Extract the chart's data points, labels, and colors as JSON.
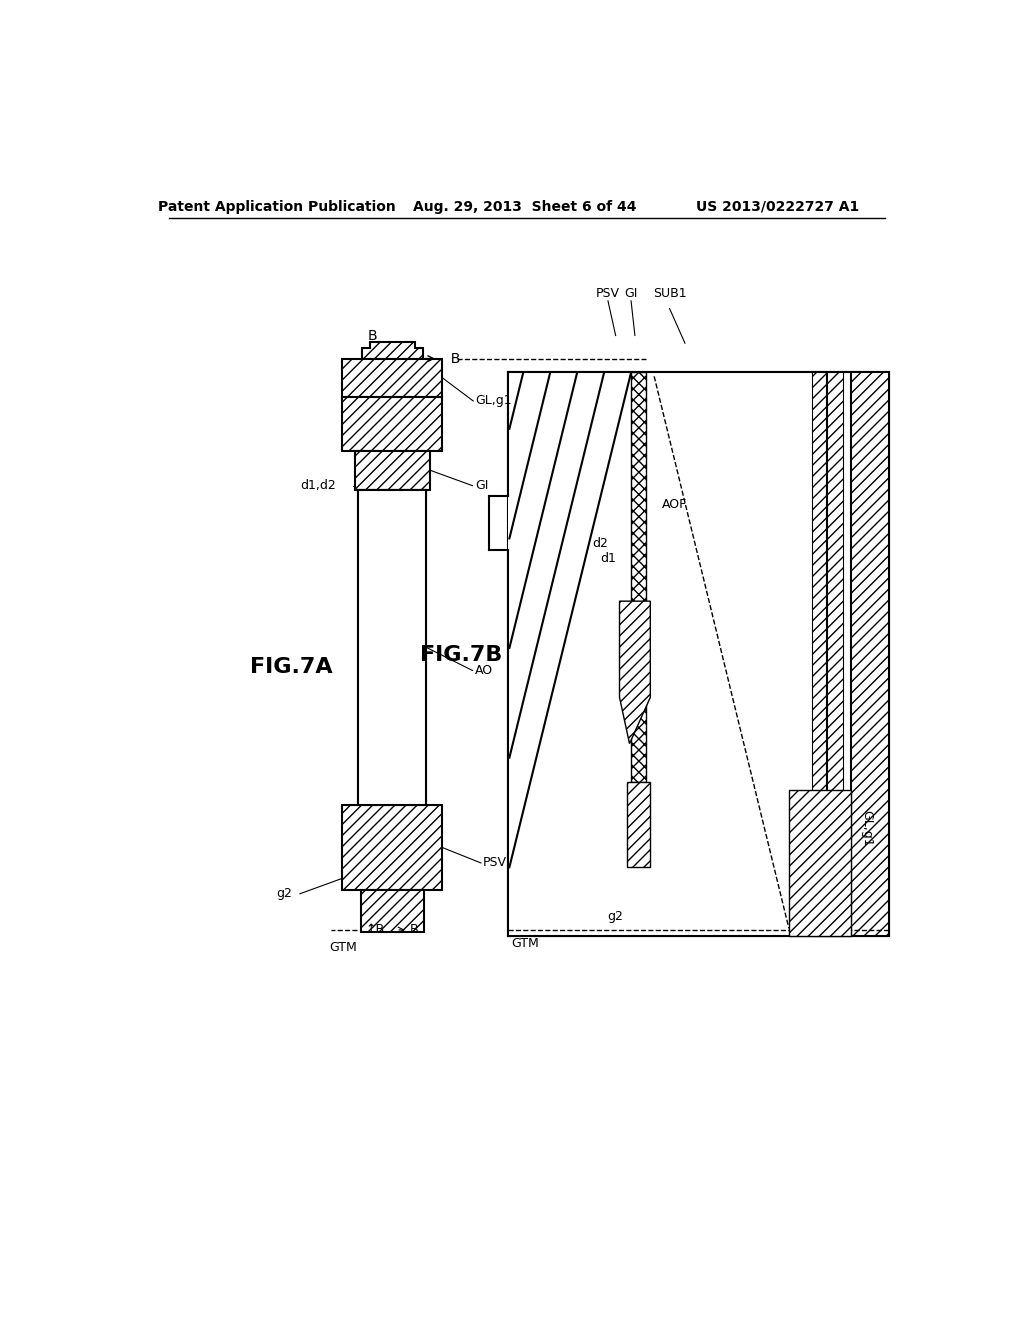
{
  "bg_color": "#ffffff",
  "header_left": "Patent Application Publication",
  "header_center": "Aug. 29, 2013  Sheet 6 of 44",
  "header_right": "US 2013/0222727 A1",
  "fig7a_label": "FIG.7A",
  "fig7b_label": "FIG.7B",
  "line_color": "#000000",
  "text_color": "#000000"
}
